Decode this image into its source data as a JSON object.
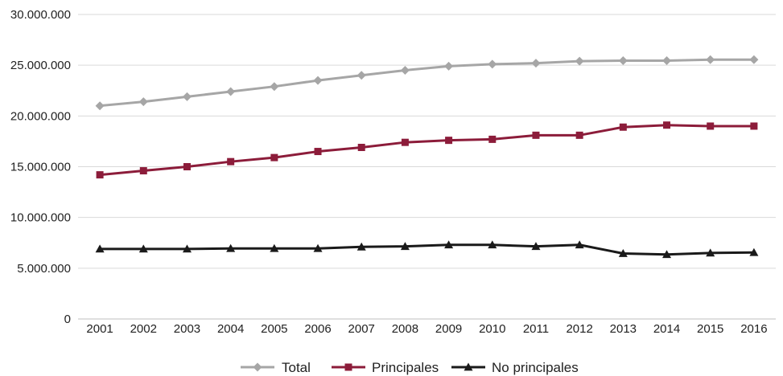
{
  "chart_data": {
    "type": "line",
    "title": "",
    "xlabel": "",
    "ylabel": "",
    "x": [
      "2001",
      "2002",
      "2003",
      "2004",
      "2005",
      "2006",
      "2007",
      "2008",
      "2009",
      "2010",
      "2011",
      "2012",
      "2013",
      "2014",
      "2015",
      "2016"
    ],
    "ylim": [
      0,
      30000000
    ],
    "yticks": [
      0,
      5000000,
      10000000,
      15000000,
      20000000,
      25000000,
      30000000
    ],
    "ytick_labels": [
      "0",
      "5.000.000",
      "10.000.000",
      "15.000.000",
      "20.000.000",
      "25.000.000",
      "30.000.000"
    ],
    "grid": true,
    "legend_position": "bottom",
    "series": [
      {
        "name": "Total",
        "color": "#a6a6a6",
        "marker": "diamond",
        "values": [
          21000000,
          21400000,
          21900000,
          22400000,
          22900000,
          23500000,
          24000000,
          24500000,
          24900000,
          25100000,
          25200000,
          25400000,
          25450000,
          25450000,
          25550000,
          25550000
        ]
      },
      {
        "name": "Principales",
        "color": "#8c1c3a",
        "marker": "square",
        "values": [
          14200000,
          14600000,
          15000000,
          15500000,
          15900000,
          16500000,
          16900000,
          17400000,
          17600000,
          17700000,
          18100000,
          18100000,
          18900000,
          19100000,
          19000000,
          19000000
        ]
      },
      {
        "name": "No principales",
        "color": "#1a1a1a",
        "marker": "triangle",
        "values": [
          6900000,
          6900000,
          6900000,
          6950000,
          6950000,
          6950000,
          7100000,
          7150000,
          7300000,
          7300000,
          7150000,
          7300000,
          6450000,
          6350000,
          6500000,
          6550000
        ]
      }
    ]
  }
}
